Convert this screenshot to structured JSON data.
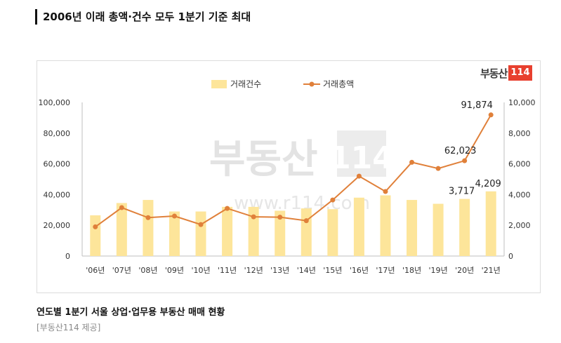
{
  "headline": "2006년 이래 총액·건수 모두 1분기 기준 최대",
  "caption": "연도별 1분기 서울 상업·업무용 부동산 매매 현황",
  "source": "[부동산114 제공]",
  "logo": {
    "text": "부동산",
    "number": "114"
  },
  "watermark": {
    "text": "부동산",
    "number": "114",
    "url": "www.r114.com"
  },
  "colors": {
    "bar": "#fde59a",
    "line": "#e0803a",
    "axis_text": "#333333"
  },
  "chart_data": {
    "type": "bar+line",
    "categories": [
      "'06년",
      "'07년",
      "'08년",
      "'09년",
      "'10년",
      "'11년",
      "'12년",
      "'13년",
      "'14년",
      "'15년",
      "'16년",
      "'17년",
      "'18년",
      "'19년",
      "'20년",
      "'21년"
    ],
    "series": [
      {
        "name": "거래건수",
        "type": "bar",
        "axis": "right",
        "values": [
          2650,
          3450,
          3650,
          2900,
          2900,
          3200,
          3200,
          2950,
          3100,
          3050,
          3800,
          3950,
          3650,
          3400,
          3717,
          4209
        ]
      },
      {
        "name": "거래총액",
        "type": "line",
        "axis": "left",
        "values": [
          19000,
          31500,
          25000,
          26000,
          20500,
          31000,
          25500,
          25300,
          23000,
          36500,
          52000,
          42000,
          61000,
          57000,
          62023,
          91874
        ]
      }
    ],
    "data_labels": [
      {
        "series": "거래총액",
        "category": "'20년",
        "text": "62,023"
      },
      {
        "series": "거래총액",
        "category": "'21년",
        "text": "91,874"
      },
      {
        "series": "거래건수",
        "category": "'20년",
        "text": "3,717"
      },
      {
        "series": "거래건수",
        "category": "'21년",
        "text": "4,209"
      }
    ],
    "left_axis": {
      "ylim": [
        0,
        100000
      ],
      "ticks": [
        "0",
        "20,000",
        "40,000",
        "60,000",
        "80,000",
        "100,000"
      ]
    },
    "right_axis": {
      "ylim": [
        0,
        10000
      ],
      "ticks": [
        "0",
        "2,000",
        "4,000",
        "6,000",
        "8,000",
        "10,000"
      ]
    },
    "legend": {
      "placement": "top-center",
      "items": [
        "거래건수",
        "거래총액"
      ]
    },
    "grid": false
  }
}
